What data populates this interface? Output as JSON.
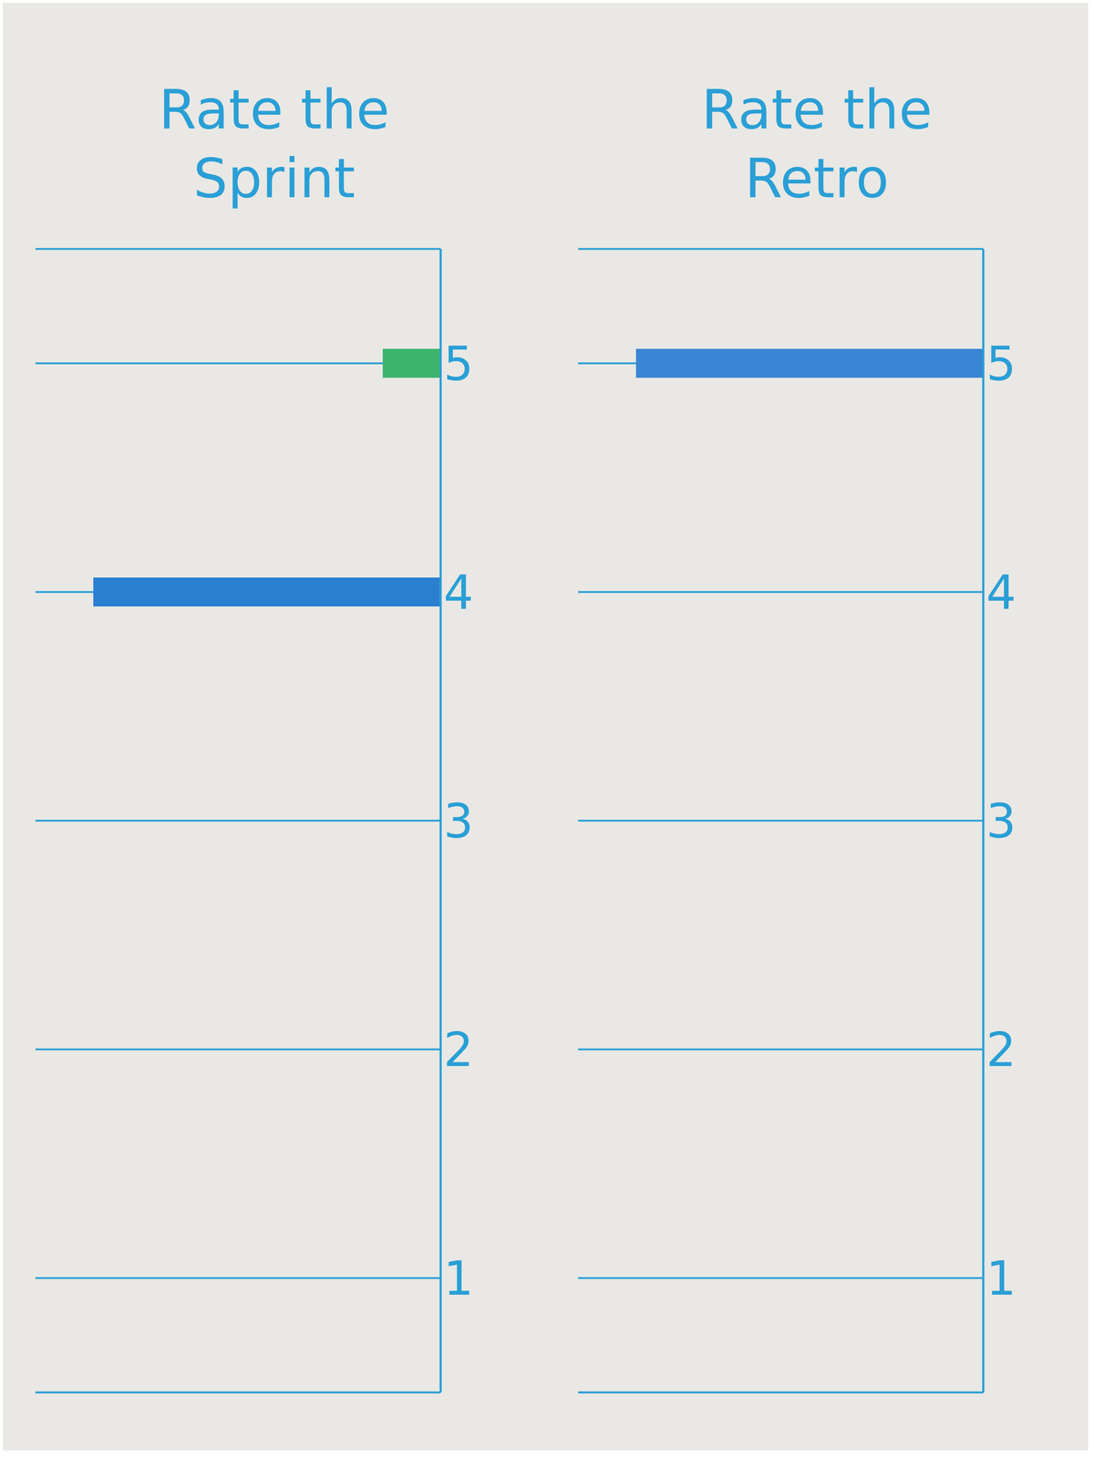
{
  "chart_data": [
    {
      "type": "bar",
      "orientation": "horizontal",
      "title": "Rate the Sprint",
      "categories": [
        "5",
        "4",
        "3",
        "2",
        "1"
      ],
      "values": [
        1,
        6,
        0,
        0,
        0
      ],
      "colors": [
        "#3cb46e",
        "#2b7fd0",
        "#2b7fd0",
        "#2b7fd0",
        "#2b7fd0"
      ],
      "xlim": [
        0,
        7
      ],
      "tick_labels": "y",
      "grid": true
    },
    {
      "type": "bar",
      "orientation": "horizontal",
      "title": "Rate the Retro",
      "categories": [
        "5",
        "4",
        "3",
        "2",
        "1"
      ],
      "values": [
        6,
        0,
        0,
        0,
        0
      ],
      "color": "#3a86d4",
      "xlim": [
        0,
        7
      ],
      "tick_labels": "y",
      "grid": true
    }
  ]
}
